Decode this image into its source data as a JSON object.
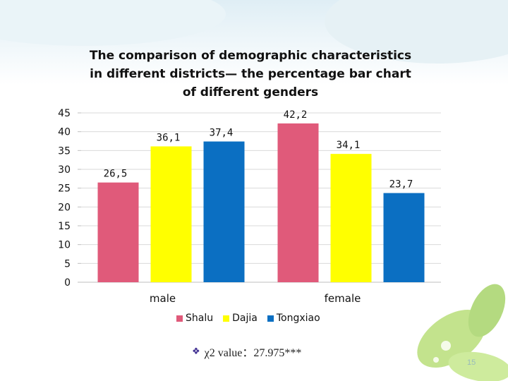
{
  "slide": {
    "title": "The comparison of demographic characteristics\nin different districts— the percentage bar chart\nof different genders",
    "note": "χ2 value：27.975***",
    "note_bullet": "❖",
    "page_number": "15"
  },
  "colors": {
    "Shalu": "#e05a7a",
    "Dajia": "#ffff00",
    "Tongxiao": "#0b6fc2",
    "grid": "#d9d9d9",
    "axis": "#bfbfbf"
  },
  "chart_data": {
    "type": "bar",
    "title": "The comparison of demographic characteristics in different districts— the percentage bar chart of different genders",
    "categories": [
      "male",
      "female"
    ],
    "series": [
      {
        "name": "Shalu",
        "values": [
          26.5,
          42.2
        ],
        "labels": [
          "26,5",
          "42,2"
        ]
      },
      {
        "name": "Dajia",
        "values": [
          36.1,
          34.1
        ],
        "labels": [
          "36,1",
          "34,1"
        ]
      },
      {
        "name": "Tongxiao",
        "values": [
          37.4,
          23.7
        ],
        "labels": [
          "37,4",
          "23,7"
        ]
      }
    ],
    "yticks": [
      0,
      5,
      10,
      15,
      20,
      25,
      30,
      35,
      40,
      45
    ],
    "ylim": [
      0,
      45
    ],
    "grid": true,
    "legend": "bottom",
    "xlabel": "",
    "ylabel": ""
  }
}
